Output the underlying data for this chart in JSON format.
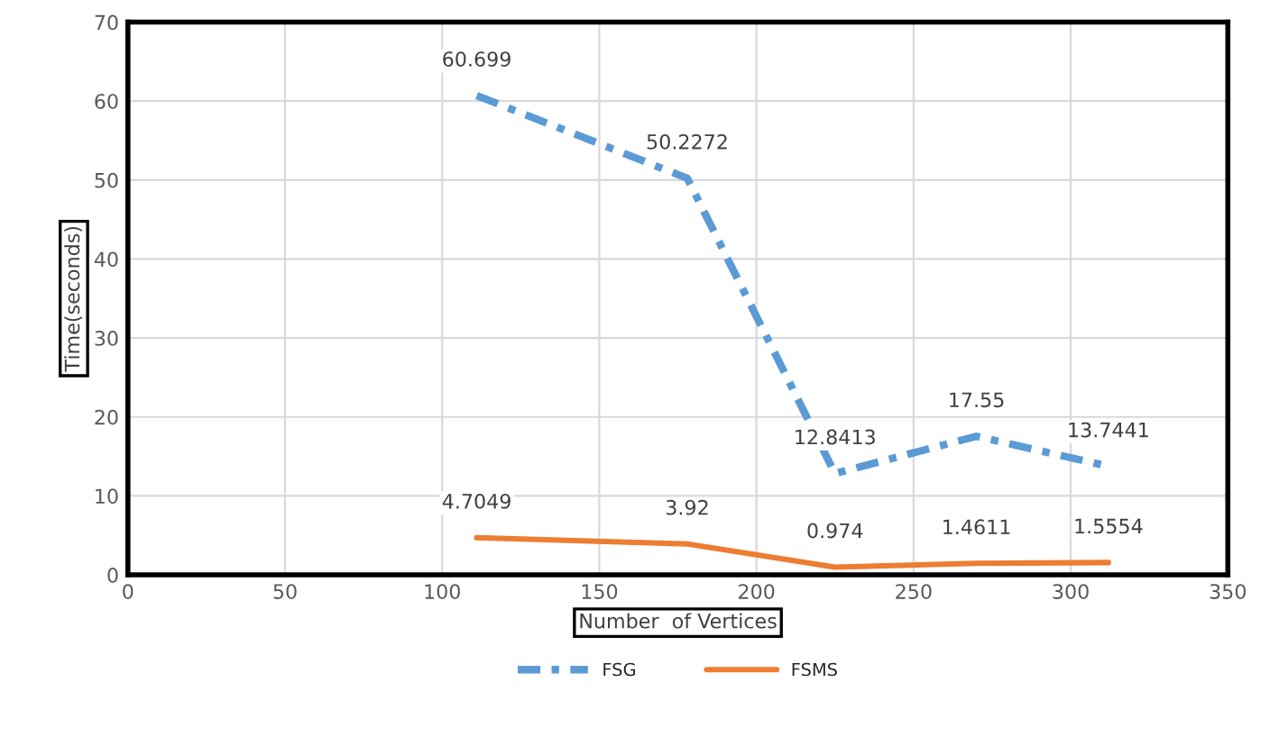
{
  "chart_data": {
    "type": "line",
    "xlabel": "Number  of Vertices",
    "ylabel": "Time(seconds)",
    "x": [
      111,
      178,
      225,
      270,
      312
    ],
    "series": [
      {
        "name": "FSG",
        "color": "#5b9bd5",
        "values": [
          60.699,
          50.2272,
          12.8413,
          17.55,
          13.7441
        ],
        "line_style": "dashdot"
      },
      {
        "name": "FSMS",
        "color": "#ed7d31",
        "values": [
          4.7049,
          3.92,
          0.974,
          1.4611,
          1.5554
        ],
        "line_style": "solid"
      }
    ],
    "xlim": [
      0,
      350
    ],
    "xticks": [
      0,
      50,
      100,
      150,
      200,
      250,
      300,
      350
    ],
    "ylim": [
      0,
      70
    ],
    "yticks": [
      0,
      10,
      20,
      30,
      40,
      50,
      60,
      70
    ],
    "grid": true,
    "legend": "bottom",
    "data_labels": true,
    "marker": "none"
  }
}
